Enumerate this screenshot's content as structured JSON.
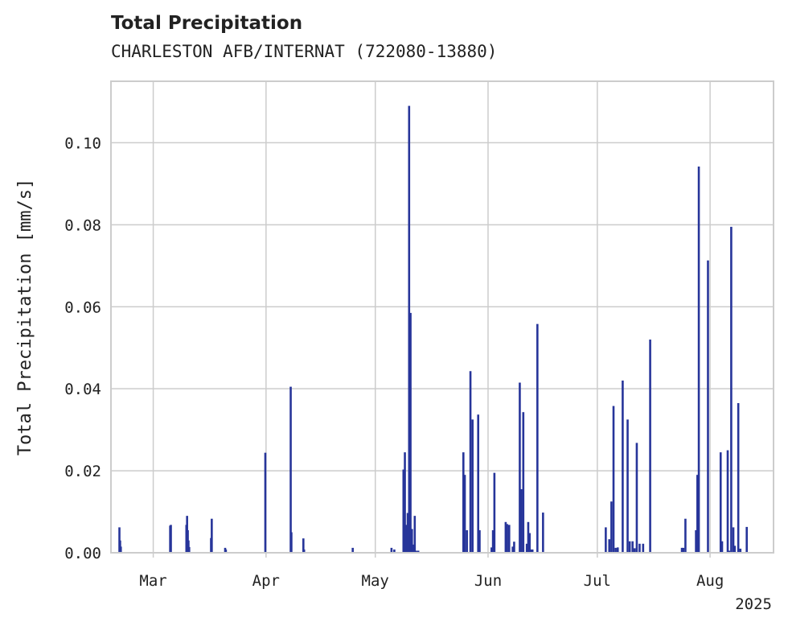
{
  "chart_data": {
    "type": "bar",
    "title": "Total Precipitation",
    "subtitle": "CHARLESTON AFB/INTERNAT (722080-13880)",
    "xlabel": "",
    "ylabel": "Total Precipitation [mm/s]",
    "year_label": "2025",
    "x_range_days": [
      -6,
      88
    ],
    "ylim": [
      0,
      0.115
    ],
    "grid": true,
    "color": "#27359a",
    "x_ticks": [
      {
        "day": 0,
        "label": "Mar"
      },
      {
        "day": 16,
        "label": "Apr"
      },
      {
        "day": 31.5,
        "label": "May"
      },
      {
        "day": 47.5,
        "label": "Jun"
      },
      {
        "day": 63,
        "label": "Jul"
      },
      {
        "day": 79,
        "label": "Aug"
      }
    ],
    "y_ticks": [
      {
        "value": 0.0,
        "label": "0.00"
      },
      {
        "value": 0.02,
        "label": "0.02"
      },
      {
        "value": 0.04,
        "label": "0.04"
      },
      {
        "value": 0.06,
        "label": "0.06"
      },
      {
        "value": 0.08,
        "label": "0.08"
      },
      {
        "value": 0.1,
        "label": "0.10"
      }
    ],
    "day_offsets": [
      -4.8,
      -4.7,
      -4.6,
      2.4,
      2.5,
      4.7,
      4.8,
      4.9,
      5.0,
      5.1,
      8.2,
      8.3,
      10.2,
      10.3,
      15.9,
      19.5,
      19.6,
      21.3,
      21.4,
      28.3,
      33.8,
      34.2,
      35.5,
      35.7,
      35.9,
      36.1,
      36.3,
      36.5,
      36.7,
      36.9,
      37.1,
      37.3,
      37.6,
      44.0,
      44.2,
      44.5,
      45.0,
      45.3,
      46.1,
      46.3,
      48.0,
      48.2,
      48.4,
      50.0,
      50.2,
      50.5,
      51.0,
      51.2,
      52.0,
      52.2,
      52.5,
      53.0,
      53.2,
      53.4,
      53.6,
      53.8,
      54.5,
      55.3,
      64.2,
      64.7,
      65.0,
      65.3,
      65.6,
      65.9,
      66.6,
      67.3,
      67.6,
      68.0,
      68.3,
      68.6,
      69.0,
      69.5,
      70.5,
      75.0,
      75.2,
      75.5,
      77.0,
      77.2,
      77.4,
      78.7,
      80.5,
      80.7,
      81.5,
      81.7,
      82.0,
      82.3,
      82.5,
      83.0,
      83.3,
      84.2
    ],
    "values": [
      0.0062,
      0.003,
      0.0015,
      0.0066,
      0.0068,
      0.0068,
      0.009,
      0.0055,
      0.003,
      0.0014,
      0.0036,
      0.0083,
      0.0012,
      0.0008,
      0.0244,
      0.0405,
      0.005,
      0.0035,
      0.0008,
      0.0012,
      0.0012,
      0.0008,
      0.0203,
      0.0245,
      0.0068,
      0.0097,
      0.109,
      0.0585,
      0.0058,
      0.002,
      0.009,
      0.0005,
      0.0005,
      0.0245,
      0.019,
      0.0055,
      0.0443,
      0.0325,
      0.0337,
      0.0055,
      0.0013,
      0.0055,
      0.0195,
      0.0075,
      0.007,
      0.0068,
      0.0015,
      0.0027,
      0.0415,
      0.0155,
      0.0343,
      0.0022,
      0.0075,
      0.0048,
      0.0008,
      0.0008,
      0.0558,
      0.0098,
      0.0062,
      0.0033,
      0.0125,
      0.0358,
      0.0012,
      0.0013,
      0.042,
      0.0325,
      0.0028,
      0.0028,
      0.0011,
      0.0268,
      0.0022,
      0.0022,
      0.052,
      0.0012,
      0.0012,
      0.0083,
      0.0055,
      0.019,
      0.0942,
      0.0713,
      0.0245,
      0.0028,
      0.025,
      0.0005,
      0.0795,
      0.0062,
      0.0017,
      0.0365,
      0.001,
      0.0063
    ]
  }
}
